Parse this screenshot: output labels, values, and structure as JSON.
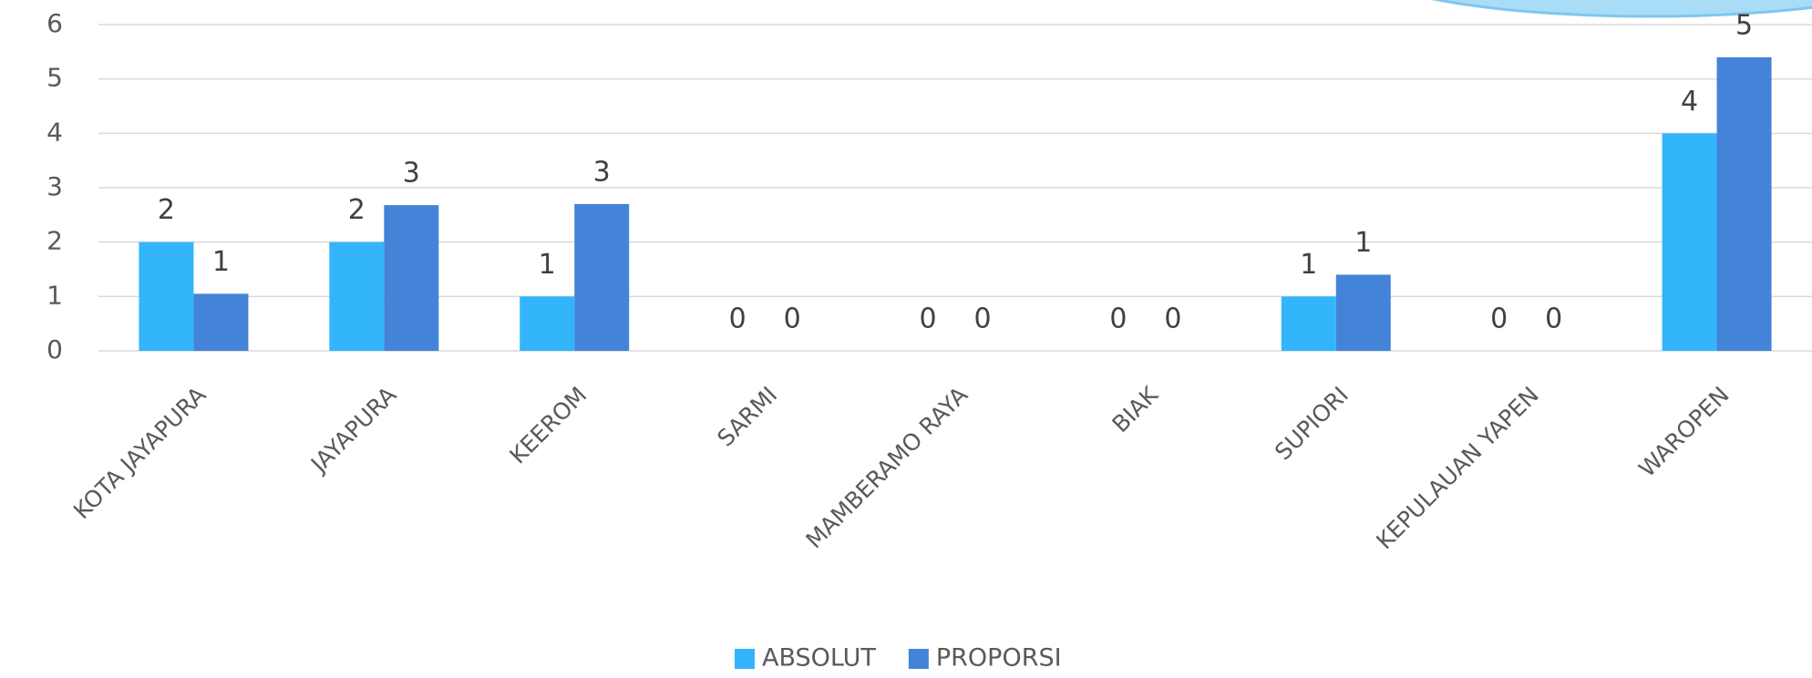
{
  "chart_data": {
    "type": "bar",
    "categories": [
      "KOTA JAYAPURA",
      "JAYAPURA",
      "KEEROM",
      "SARMI",
      "MAMBERAMO RAYA",
      "BIAK",
      "SUPIORI",
      "KEPULAUAN YAPEN",
      "WAROPEN"
    ],
    "series": [
      {
        "name": "ABSOLUT",
        "color": "#33b5fc",
        "values": [
          2,
          2,
          1,
          0,
          0,
          0,
          1,
          0,
          4
        ]
      },
      {
        "name": "PROPORSI",
        "color": "#4384d8",
        "values": [
          1.05,
          2.68,
          2.7,
          0,
          0,
          0,
          1.4,
          0,
          5.4
        ],
        "value_labels": [
          "1",
          "3",
          "3",
          "0",
          "0",
          "0",
          "1",
          "0",
          "5"
        ]
      }
    ],
    "ylim": [
      0,
      6
    ],
    "yticks": [
      0,
      1,
      2,
      3,
      4,
      5,
      6
    ],
    "grid": true,
    "legend": "bottom"
  }
}
